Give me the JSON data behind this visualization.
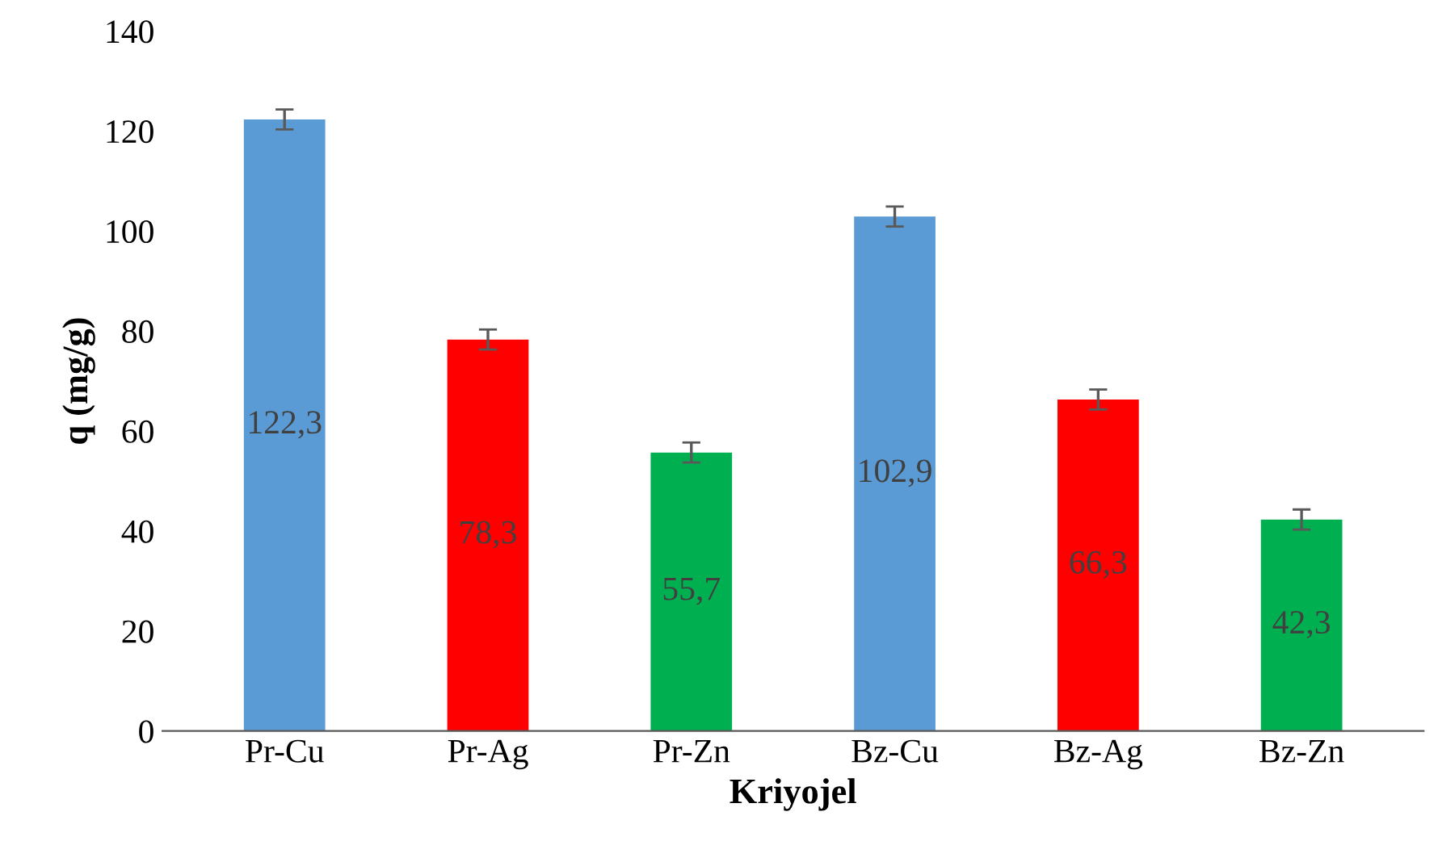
{
  "chart_data": {
    "type": "bar",
    "xlabel": "Kriyojel",
    "ylabel": "q (mg/g)",
    "categories": [
      "Pr-Cu",
      "Pr-Ag",
      "Pr-Zn",
      "Bz-Cu",
      "Bz-Ag",
      "Bz-Zn"
    ],
    "values": [
      122.3,
      78.3,
      55.7,
      102.9,
      66.3,
      42.3
    ],
    "colors": [
      "#5b9bd5",
      "#ff0000",
      "#00b050",
      "#5b9bd5",
      "#ff0000",
      "#00b050"
    ],
    "errors": [
      2,
      2,
      2,
      2,
      2,
      2
    ],
    "value_labels": [
      "122,3",
      "78,3",
      "55,7",
      "102,9",
      "66,3",
      "42,3"
    ],
    "ylim": [
      0,
      140
    ],
    "yticks": [
      0,
      20,
      40,
      60,
      80,
      100,
      120,
      140
    ],
    "grid": false,
    "legend": false
  }
}
